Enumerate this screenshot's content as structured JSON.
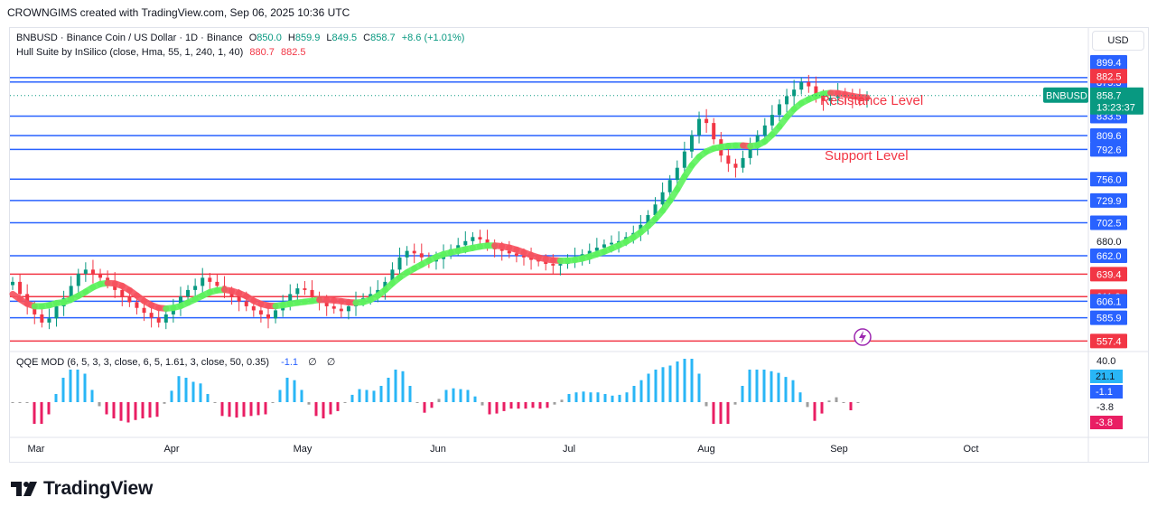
{
  "header": {
    "text": "CROWNGIMS created with TradingView.com, Sep 06, 2025 10:36 UTC"
  },
  "legend": {
    "symbol": "BNBUSD · Binance Coin / US Dollar · 1D · Binance",
    "o_label": "O",
    "o": "850.0",
    "h_label": "H",
    "h": "859.9",
    "l_label": "L",
    "l": "849.5",
    "c_label": "C",
    "c": "858.7",
    "change": "+8.6 (+1.01%)",
    "hull_label": "Hull Suite by InSilico (close, Hma, 55, 1, 240, 1, 40)",
    "hull_v1": "880.7",
    "hull_v2": "882.5"
  },
  "qqe": {
    "label": "QQE MOD (6, 5, 3, 3, close, 6, 5, 1.61, 3, close, 50, 0.35)",
    "value": "-1.1",
    "empty1": "∅",
    "empty2": "∅",
    "scale": [
      "40.0",
      "21.1",
      "-1.1",
      "-3.8",
      "-3.8"
    ]
  },
  "currency_button": "USD",
  "annotations": {
    "resistance": "Resistance Level",
    "support": "Support Level"
  },
  "price_tag": {
    "symbol": "BNBUSD",
    "price": "858.7",
    "countdown": "13:23:37"
  },
  "colors": {
    "up": "#089981",
    "down": "#f23645",
    "level_blue": "#2962ff",
    "level_red": "#f23645",
    "hull_green": "#5df25d",
    "hull_red": "#f7525f",
    "qqe_blue": "#29b6f6",
    "qqe_pink": "#e91e63",
    "qqe_gray": "#9e9e9e"
  },
  "chart_data": {
    "type": "candlestick",
    "x_axis_labels": [
      "Mar",
      "Apr",
      "May",
      "Jun",
      "Jul",
      "Aug",
      "Sep",
      "Oct"
    ],
    "y_range": [
      550,
      905
    ],
    "price_axis_labels": [
      "899.4",
      "882.5",
      "880.7",
      "875.3",
      "858.7",
      "833.5",
      "809.6",
      "792.6",
      "756.0",
      "729.9",
      "702.5",
      "680.0",
      "662.0",
      "639.4",
      "611.9",
      "606.1",
      "585.9",
      "557.4"
    ],
    "levels": [
      {
        "value": 880.7,
        "color": "blue",
        "label": "880.7"
      },
      {
        "value": 875.3,
        "color": "blue",
        "label": "875.3"
      },
      {
        "value": 833.5,
        "color": "blue",
        "label": "833.5"
      },
      {
        "value": 809.6,
        "color": "blue",
        "label": "809.6"
      },
      {
        "value": 792.6,
        "color": "blue",
        "label": "792.6"
      },
      {
        "value": 756.0,
        "color": "blue",
        "label": "756.0"
      },
      {
        "value": 729.9,
        "color": "blue",
        "label": "729.9"
      },
      {
        "value": 702.5,
        "color": "blue",
        "label": "702.5"
      },
      {
        "value": 662.0,
        "color": "blue",
        "label": "662.0"
      },
      {
        "value": 639.4,
        "color": "red",
        "label": "639.4"
      },
      {
        "value": 611.9,
        "color": "red",
        "label": "611.9"
      },
      {
        "value": 606.1,
        "color": "blue",
        "label": "606.1"
      },
      {
        "value": 585.9,
        "color": "blue",
        "label": "585.9"
      },
      {
        "value": 557.4,
        "color": "red",
        "label": "557.4"
      }
    ],
    "last_price": 858.7,
    "closes": [
      630,
      615,
      600,
      590,
      580,
      585,
      600,
      610,
      625,
      640,
      645,
      640,
      635,
      630,
      620,
      612,
      605,
      598,
      592,
      586,
      580,
      590,
      600,
      612,
      620,
      625,
      635,
      630,
      625,
      618,
      612,
      606,
      600,
      595,
      590,
      585,
      595,
      605,
      615,
      622,
      620,
      612,
      605,
      600,
      597,
      594,
      600,
      606,
      610,
      615,
      620,
      630,
      645,
      660,
      668,
      665,
      660,
      655,
      658,
      664,
      670,
      675,
      680,
      685,
      682,
      676,
      670,
      668,
      665,
      662,
      660,
      657,
      655,
      652,
      650,
      652,
      655,
      660,
      664,
      668,
      672,
      676,
      678,
      680,
      685,
      690,
      700,
      712,
      725,
      740,
      755,
      770,
      790,
      810,
      830,
      825,
      805,
      785,
      775,
      770,
      782,
      795,
      810,
      822,
      835,
      848,
      858,
      866,
      875,
      870,
      860,
      852,
      856,
      862,
      858,
      855,
      852,
      858
    ]
  }
}
